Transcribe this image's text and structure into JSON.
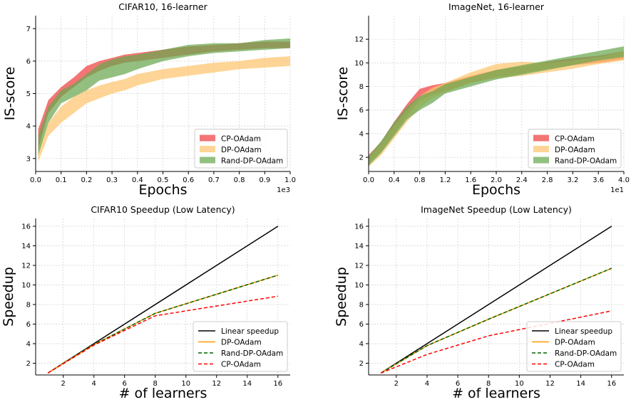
{
  "chart_data": [
    {
      "id": "p1",
      "type": "area",
      "title": "CIFAR10, 16-learner",
      "xlabel": "Epochs",
      "ylabel": "IS-score",
      "xlim": [
        0,
        1.0
      ],
      "ylim": [
        2.6,
        7.4
      ],
      "xticks": [
        0.0,
        0.1,
        0.2,
        0.3,
        0.4,
        0.5,
        0.6,
        0.7,
        0.8,
        0.9,
        1.0
      ],
      "xticklabels": [
        "0.0",
        "0.1",
        "0.2",
        "0.3",
        "0.4",
        "0.5",
        "0.6",
        "0.7",
        "0.8",
        "0.9",
        "1.0"
      ],
      "yticks": [
        3,
        4,
        5,
        6,
        7
      ],
      "yticklabels": [
        "3",
        "4",
        "5",
        "6",
        "7"
      ],
      "x_multiplier": "1e3",
      "legend_position": "lower-right",
      "grid": true,
      "series": [
        {
          "name": "CP-OAdam",
          "color": "#f04040",
          "lower": [
            [
              0.01,
              3.3
            ],
            [
              0.05,
              4.4
            ],
            [
              0.1,
              4.9
            ],
            [
              0.15,
              5.2
            ],
            [
              0.2,
              5.5
            ],
            [
              0.25,
              5.7
            ],
            [
              0.3,
              5.85
            ],
            [
              0.35,
              5.95
            ],
            [
              0.4,
              6.0
            ],
            [
              0.5,
              6.1
            ],
            [
              0.6,
              6.2
            ],
            [
              0.7,
              6.3
            ],
            [
              0.8,
              6.35
            ],
            [
              0.9,
              6.4
            ],
            [
              1.0,
              6.4
            ]
          ],
          "upper": [
            [
              0.01,
              3.9
            ],
            [
              0.05,
              4.8
            ],
            [
              0.1,
              5.2
            ],
            [
              0.15,
              5.5
            ],
            [
              0.2,
              5.85
            ],
            [
              0.25,
              6.0
            ],
            [
              0.3,
              6.1
            ],
            [
              0.35,
              6.2
            ],
            [
              0.4,
              6.25
            ],
            [
              0.5,
              6.35
            ],
            [
              0.6,
              6.45
            ],
            [
              0.7,
              6.5
            ],
            [
              0.8,
              6.55
            ],
            [
              0.9,
              6.6
            ],
            [
              1.0,
              6.6
            ]
          ]
        },
        {
          "name": "DP-OAdam",
          "color": "#fdc56e",
          "lower": [
            [
              0.01,
              2.9
            ],
            [
              0.05,
              3.7
            ],
            [
              0.1,
              4.1
            ],
            [
              0.15,
              4.4
            ],
            [
              0.2,
              4.7
            ],
            [
              0.25,
              4.85
            ],
            [
              0.3,
              5.0
            ],
            [
              0.35,
              5.1
            ],
            [
              0.4,
              5.25
            ],
            [
              0.5,
              5.45
            ],
            [
              0.6,
              5.55
            ],
            [
              0.7,
              5.65
            ],
            [
              0.8,
              5.75
            ],
            [
              0.9,
              5.8
            ],
            [
              1.0,
              5.85
            ]
          ],
          "upper": [
            [
              0.01,
              3.3
            ],
            [
              0.05,
              4.1
            ],
            [
              0.1,
              4.6
            ],
            [
              0.15,
              4.9
            ],
            [
              0.2,
              5.1
            ],
            [
              0.25,
              5.25
            ],
            [
              0.3,
              5.35
            ],
            [
              0.35,
              5.45
            ],
            [
              0.4,
              5.6
            ],
            [
              0.5,
              5.75
            ],
            [
              0.6,
              5.85
            ],
            [
              0.7,
              5.95
            ],
            [
              0.8,
              6.0
            ],
            [
              0.9,
              6.1
            ],
            [
              1.0,
              6.15
            ]
          ]
        },
        {
          "name": "Rand-DP-OAdam",
          "color": "#6aa84f",
          "lower": [
            [
              0.01,
              3.1
            ],
            [
              0.05,
              4.1
            ],
            [
              0.1,
              4.7
            ],
            [
              0.15,
              4.9
            ],
            [
              0.2,
              5.1
            ],
            [
              0.25,
              5.4
            ],
            [
              0.3,
              5.5
            ],
            [
              0.35,
              5.6
            ],
            [
              0.4,
              5.75
            ],
            [
              0.5,
              6.0
            ],
            [
              0.6,
              6.15
            ],
            [
              0.7,
              6.25
            ],
            [
              0.8,
              6.3
            ],
            [
              0.9,
              6.35
            ],
            [
              1.0,
              6.4
            ]
          ],
          "upper": [
            [
              0.01,
              3.7
            ],
            [
              0.05,
              4.6
            ],
            [
              0.1,
              5.1
            ],
            [
              0.15,
              5.3
            ],
            [
              0.2,
              5.6
            ],
            [
              0.25,
              5.9
            ],
            [
              0.3,
              6.05
            ],
            [
              0.35,
              6.15
            ],
            [
              0.4,
              6.2
            ],
            [
              0.5,
              6.35
            ],
            [
              0.6,
              6.5
            ],
            [
              0.7,
              6.55
            ],
            [
              0.8,
              6.55
            ],
            [
              0.9,
              6.65
            ],
            [
              1.0,
              6.7
            ]
          ]
        }
      ]
    },
    {
      "id": "p2",
      "type": "area",
      "title": "ImageNet, 16-learner",
      "xlabel": "Epochs",
      "ylabel": "IS-score",
      "xlim": [
        0,
        4.0
      ],
      "ylim": [
        0.8,
        14
      ],
      "xticks": [
        0.0,
        0.4,
        0.8,
        1.2,
        1.6,
        2.0,
        2.4,
        2.8,
        3.2,
        3.6,
        4.0
      ],
      "xticklabels": [
        "0.0",
        "0.4",
        "0.8",
        "1.2",
        "1.6",
        "2.0",
        "2.4",
        "2.8",
        "3.2",
        "3.6",
        "4.0"
      ],
      "yticks": [
        2,
        4,
        6,
        8,
        10,
        12
      ],
      "yticklabels": [
        "2",
        "4",
        "6",
        "8",
        "10",
        "12"
      ],
      "x_multiplier": "1e1",
      "legend_position": "lower-right",
      "grid": true,
      "series": [
        {
          "name": "CP-OAdam",
          "color": "#f04040",
          "lower": [
            [
              0.0,
              1.5
            ],
            [
              0.2,
              2.5
            ],
            [
              0.4,
              4.0
            ],
            [
              0.6,
              5.5
            ],
            [
              0.8,
              6.8
            ],
            [
              1.0,
              7.3
            ],
            [
              1.2,
              7.6
            ],
            [
              1.6,
              8.3
            ],
            [
              2.0,
              8.8
            ],
            [
              2.4,
              9.1
            ],
            [
              2.8,
              9.5
            ],
            [
              3.2,
              9.8
            ],
            [
              3.6,
              10.0
            ],
            [
              4.0,
              10.3
            ]
          ],
          "upper": [
            [
              0.0,
              2.2
            ],
            [
              0.2,
              3.3
            ],
            [
              0.4,
              5.0
            ],
            [
              0.6,
              6.5
            ],
            [
              0.8,
              7.8
            ],
            [
              1.0,
              8.1
            ],
            [
              1.2,
              8.3
            ],
            [
              1.6,
              8.9
            ],
            [
              2.0,
              9.4
            ],
            [
              2.4,
              9.7
            ],
            [
              2.8,
              10.1
            ],
            [
              3.2,
              10.4
            ],
            [
              3.6,
              10.6
            ],
            [
              4.0,
              11.0
            ]
          ]
        },
        {
          "name": "DP-OAdam",
          "color": "#fdc56e",
          "lower": [
            [
              0.0,
              1.2
            ],
            [
              0.2,
              2.2
            ],
            [
              0.4,
              3.6
            ],
            [
              0.6,
              5.0
            ],
            [
              0.8,
              6.2
            ],
            [
              1.0,
              7.0
            ],
            [
              1.2,
              7.5
            ],
            [
              1.6,
              8.3
            ],
            [
              2.0,
              8.7
            ],
            [
              2.4,
              8.9
            ],
            [
              2.8,
              9.2
            ],
            [
              3.2,
              9.5
            ],
            [
              3.6,
              9.9
            ],
            [
              4.0,
              10.2
            ]
          ],
          "upper": [
            [
              0.0,
              2.0
            ],
            [
              0.2,
              3.2
            ],
            [
              0.4,
              4.7
            ],
            [
              0.6,
              6.0
            ],
            [
              0.8,
              7.2
            ],
            [
              1.0,
              7.9
            ],
            [
              1.2,
              8.3
            ],
            [
              1.6,
              9.2
            ],
            [
              2.0,
              9.9
            ],
            [
              2.4,
              10.1
            ],
            [
              2.8,
              10.0
            ],
            [
              3.2,
              10.2
            ],
            [
              3.6,
              10.5
            ],
            [
              4.0,
              11.0
            ]
          ]
        },
        {
          "name": "Rand-DP-OAdam",
          "color": "#6aa84f",
          "lower": [
            [
              0.0,
              1.3
            ],
            [
              0.2,
              2.4
            ],
            [
              0.4,
              3.8
            ],
            [
              0.6,
              5.2
            ],
            [
              0.8,
              6.0
            ],
            [
              1.0,
              6.6
            ],
            [
              1.2,
              7.4
            ],
            [
              1.6,
              8.0
            ],
            [
              2.0,
              8.6
            ],
            [
              2.4,
              9.0
            ],
            [
              2.8,
              9.4
            ],
            [
              3.2,
              9.8
            ],
            [
              3.6,
              10.2
            ],
            [
              4.0,
              10.5
            ]
          ],
          "upper": [
            [
              0.0,
              2.1
            ],
            [
              0.2,
              3.4
            ],
            [
              0.4,
              5.0
            ],
            [
              0.6,
              6.3
            ],
            [
              0.8,
              7.2
            ],
            [
              1.0,
              7.6
            ],
            [
              1.2,
              8.2
            ],
            [
              1.6,
              8.8
            ],
            [
              2.0,
              9.4
            ],
            [
              2.4,
              9.8
            ],
            [
              2.8,
              10.2
            ],
            [
              3.2,
              10.6
            ],
            [
              3.6,
              11.0
            ],
            [
              4.0,
              11.4
            ]
          ]
        }
      ]
    },
    {
      "id": "p3",
      "type": "line",
      "title": "CIFAR10 Speedup (Low Latency)",
      "xlabel": "# of learners",
      "ylabel": "Speedup",
      "xlim": [
        0.2,
        16.8
      ],
      "ylim": [
        0.8,
        16.8
      ],
      "xticks": [
        2,
        4,
        6,
        8,
        10,
        12,
        14,
        16
      ],
      "xticklabels": [
        "2",
        "4",
        "6",
        "8",
        "10",
        "12",
        "14",
        "16"
      ],
      "yticks": [
        2,
        4,
        6,
        8,
        10,
        12,
        14,
        16
      ],
      "yticklabels": [
        "2",
        "4",
        "6",
        "8",
        "10",
        "12",
        "14",
        "16"
      ],
      "legend_position": "lower-right",
      "grid": true,
      "series": [
        {
          "name": "Linear speedup",
          "color": "#000000",
          "dash": "",
          "x": [
            1,
            16
          ],
          "y": [
            1,
            16
          ]
        },
        {
          "name": "DP-OAdam",
          "color": "#ff9900",
          "dash": "",
          "x": [
            1,
            4,
            8,
            16
          ],
          "y": [
            1,
            3.9,
            7.1,
            11.0
          ]
        },
        {
          "name": "Rand-DP-OAdam",
          "color": "#006400",
          "dash": "5 3",
          "x": [
            1,
            4,
            8,
            16
          ],
          "y": [
            1,
            3.9,
            7.1,
            11.0
          ]
        },
        {
          "name": "CP-OAdam",
          "color": "#ff0000",
          "dash": "5 3",
          "x": [
            1,
            4,
            8,
            16
          ],
          "y": [
            1,
            3.85,
            6.85,
            8.85
          ]
        }
      ]
    },
    {
      "id": "p4",
      "type": "line",
      "title": "ImageNet Speedup (Low Latency)",
      "xlabel": "# of learners",
      "ylabel": "Speedup",
      "xlim": [
        0.2,
        16.8
      ],
      "ylim": [
        0.8,
        16.8
      ],
      "xticks": [
        2,
        4,
        6,
        8,
        10,
        12,
        14,
        16
      ],
      "xticklabels": [
        "2",
        "4",
        "6",
        "8",
        "10",
        "12",
        "14",
        "16"
      ],
      "yticks": [
        2,
        4,
        6,
        8,
        10,
        12,
        14,
        16
      ],
      "yticklabels": [
        "2",
        "4",
        "6",
        "8",
        "10",
        "12",
        "14",
        "16"
      ],
      "legend_position": "lower-right",
      "grid": true,
      "series": [
        {
          "name": "Linear speedup",
          "color": "#000000",
          "dash": "",
          "x": [
            1,
            16
          ],
          "y": [
            1,
            16
          ]
        },
        {
          "name": "DP-OAdam",
          "color": "#ff9900",
          "dash": "",
          "x": [
            1,
            4,
            8,
            16
          ],
          "y": [
            1,
            3.8,
            6.5,
            11.7
          ]
        },
        {
          "name": "Rand-DP-OAdam",
          "color": "#006400",
          "dash": "5 3",
          "x": [
            1,
            4,
            8,
            16
          ],
          "y": [
            1,
            3.8,
            6.5,
            11.7
          ]
        },
        {
          "name": "CP-OAdam",
          "color": "#ff0000",
          "dash": "5 3",
          "x": [
            1,
            4,
            8,
            16
          ],
          "y": [
            1,
            2.9,
            4.8,
            7.35
          ]
        }
      ]
    }
  ]
}
